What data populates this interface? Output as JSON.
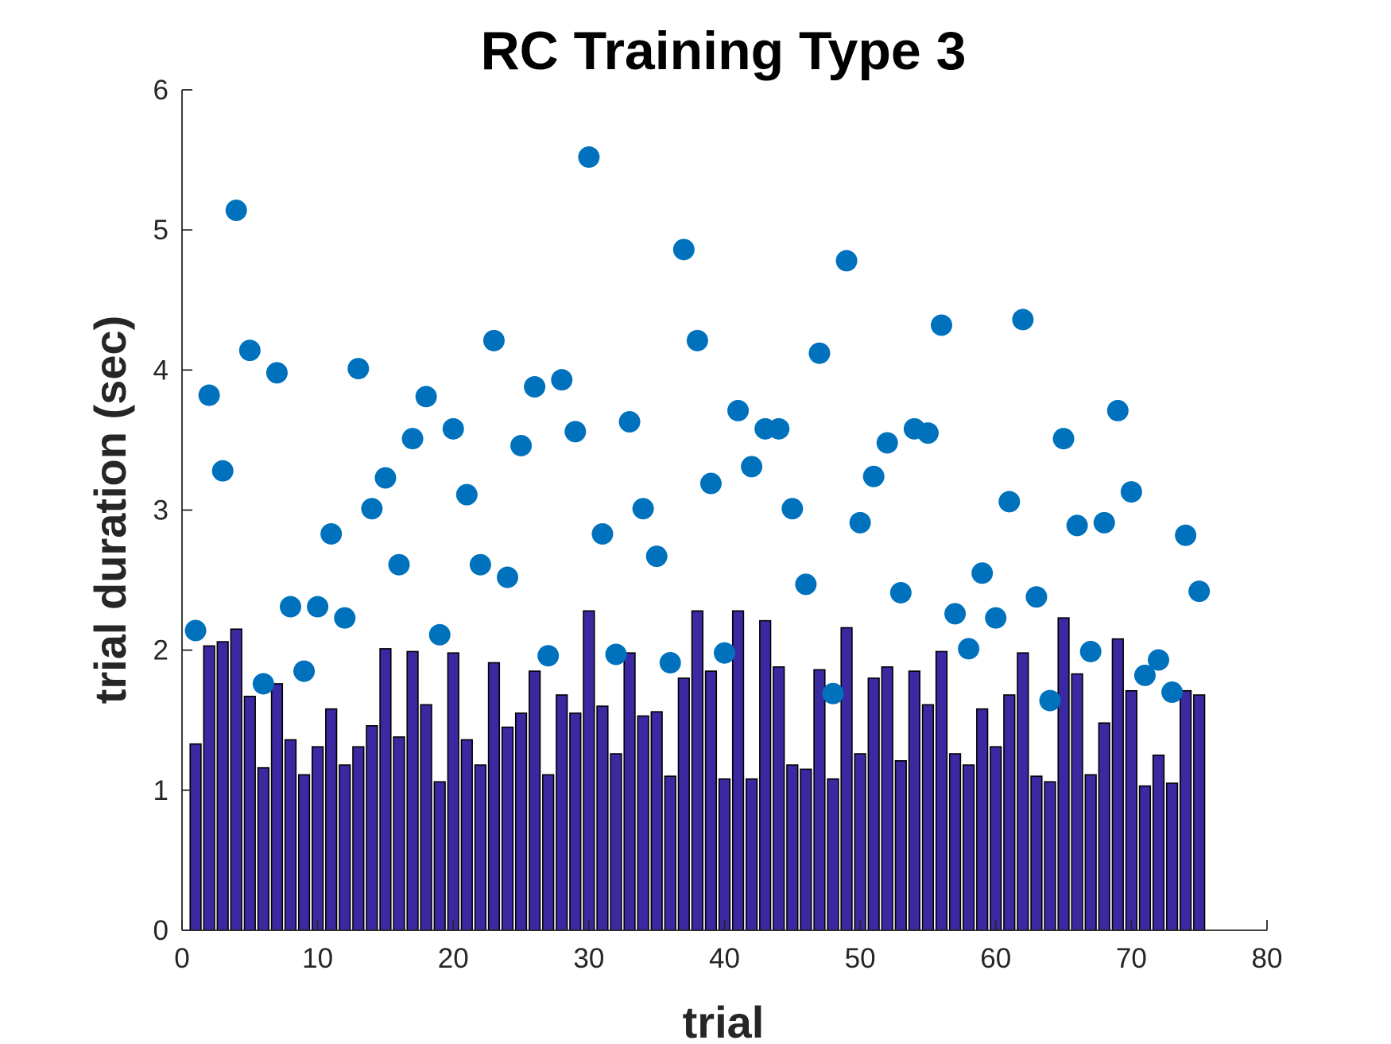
{
  "chart_data": {
    "type": "bar",
    "title": "RC Training Type 3",
    "xlabel": "trial",
    "ylabel": "trial duration (sec)",
    "xlim": [
      0,
      80
    ],
    "ylim": [
      0,
      6
    ],
    "xticks": [
      "0",
      "10",
      "20",
      "30",
      "40",
      "50",
      "60",
      "70",
      "80"
    ],
    "yticks": [
      "0",
      "1",
      "2",
      "3",
      "4",
      "5",
      "6"
    ],
    "grid": false,
    "legend": "none",
    "bar_color": "#3a29a0",
    "marker_color": "#0072bd",
    "bars": {
      "x": [
        1,
        2,
        3,
        4,
        5,
        6,
        7,
        8,
        9,
        10,
        11,
        12,
        13,
        14,
        15,
        16,
        17,
        18,
        19,
        20,
        21,
        22,
        23,
        24,
        25,
        26,
        27,
        28,
        29,
        30,
        31,
        32,
        33,
        34,
        35,
        36,
        37,
        38,
        39,
        40,
        41,
        42,
        43,
        44,
        45,
        46,
        47,
        48,
        49,
        50,
        51,
        52,
        53,
        54,
        55,
        56,
        57,
        58,
        59,
        60,
        61,
        62,
        63,
        64,
        65,
        66,
        67,
        68,
        69,
        70,
        71,
        72,
        73,
        74,
        75
      ],
      "values": [
        1.33,
        2.03,
        2.06,
        2.15,
        1.67,
        1.16,
        1.76,
        1.36,
        1.11,
        1.31,
        1.58,
        1.18,
        1.31,
        1.46,
        2.01,
        1.38,
        1.99,
        1.61,
        1.06,
        1.98,
        1.36,
        1.18,
        1.91,
        1.45,
        1.55,
        1.85,
        1.11,
        1.68,
        1.55,
        2.28,
        1.6,
        1.26,
        1.98,
        1.53,
        1.56,
        1.1,
        1.8,
        2.28,
        1.85,
        1.08,
        2.28,
        1.08,
        2.21,
        1.88,
        1.18,
        1.15,
        1.86,
        1.08,
        2.16,
        1.26,
        1.8,
        1.88,
        1.21,
        1.85,
        1.61,
        1.99,
        1.26,
        1.18,
        1.58,
        1.31,
        1.68,
        1.98,
        1.1,
        1.06,
        2.23,
        1.83,
        1.11,
        1.48,
        2.08,
        1.71,
        1.03,
        1.25,
        1.05,
        1.71,
        1.68
      ]
    },
    "points": {
      "x": [
        1,
        2,
        3,
        4,
        5,
        6,
        7,
        8,
        9,
        10,
        11,
        12,
        13,
        14,
        15,
        16,
        17,
        18,
        19,
        20,
        21,
        22,
        23,
        24,
        25,
        26,
        27,
        28,
        29,
        30,
        31,
        32,
        33,
        34,
        35,
        36,
        37,
        38,
        39,
        40,
        41,
        42,
        43,
        44,
        45,
        46,
        47,
        48,
        49,
        50,
        51,
        52,
        53,
        54,
        55,
        56,
        57,
        58,
        59,
        60,
        61,
        62,
        63,
        64,
        65,
        66,
        67,
        68,
        69,
        70,
        71,
        72,
        73,
        74,
        75
      ],
      "y": [
        2.14,
        3.82,
        3.28,
        5.14,
        4.14,
        1.76,
        3.98,
        2.31,
        1.85,
        2.31,
        2.83,
        2.23,
        4.01,
        3.01,
        3.23,
        2.61,
        3.51,
        3.81,
        2.11,
        3.58,
        3.11,
        2.61,
        4.21,
        2.52,
        3.46,
        3.88,
        1.96,
        3.93,
        3.56,
        5.52,
        2.83,
        1.97,
        3.63,
        3.01,
        2.67,
        1.91,
        4.86,
        4.21,
        3.19,
        1.98,
        3.71,
        3.31,
        3.58,
        3.58,
        3.01,
        2.47,
        4.12,
        1.69,
        4.78,
        2.91,
        3.24,
        3.48,
        2.41,
        3.58,
        3.55,
        4.32,
        2.26,
        2.01,
        2.55,
        2.23,
        3.06,
        4.36,
        2.38,
        1.64,
        3.51,
        2.89,
        1.99,
        2.91,
        3.71,
        3.13,
        1.82,
        1.93,
        1.7,
        2.82,
        2.42
      ]
    }
  }
}
